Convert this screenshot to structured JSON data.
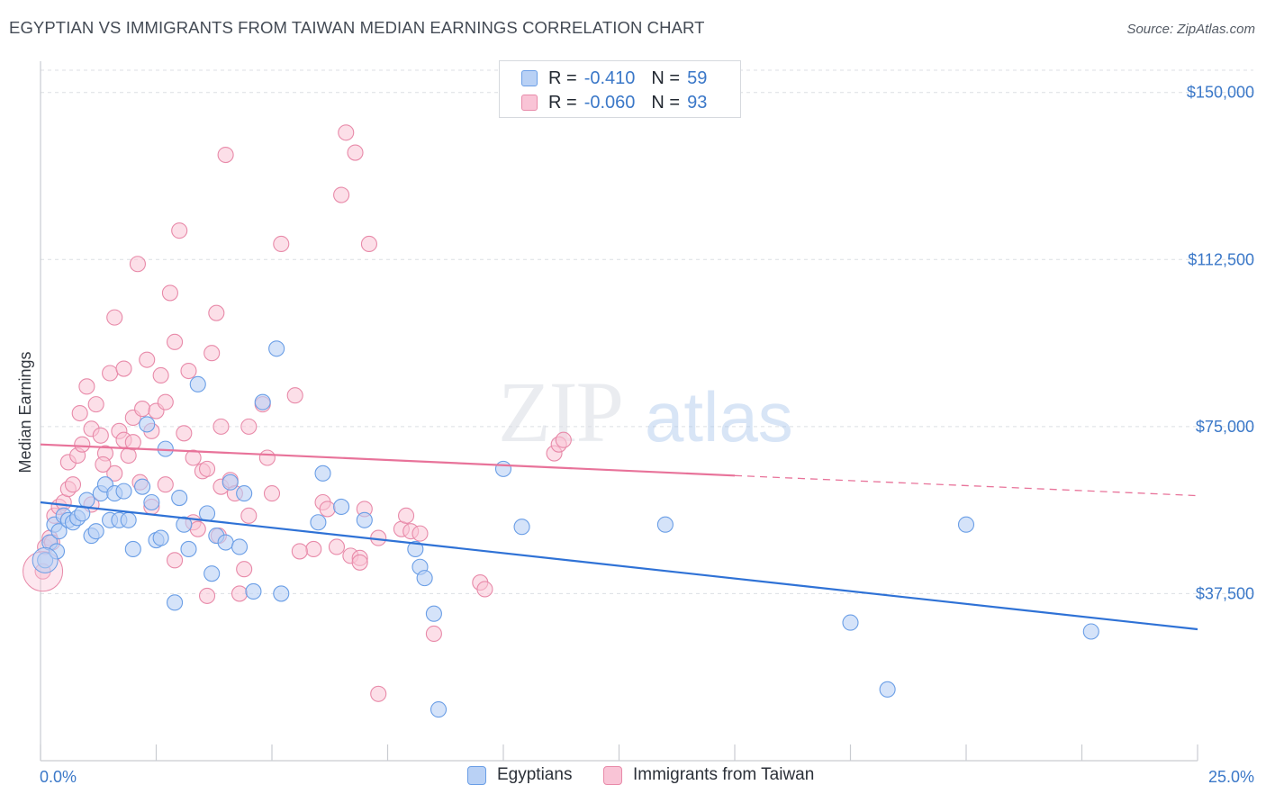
{
  "header": {
    "title": "EGYPTIAN VS IMMIGRANTS FROM TAIWAN MEDIAN EARNINGS CORRELATION CHART",
    "source": "Source: ZipAtlas.com"
  },
  "watermark": {
    "part1": "ZIP",
    "part2": "atlas"
  },
  "legend": {
    "r_label": "R =",
    "n_label": "N =",
    "series": [
      {
        "name": "Egyptians",
        "r": "-0.410",
        "n": "59",
        "fill": "#b9d1f5",
        "stroke": "#6a9ee6"
      },
      {
        "name": "Immigrants from Taiwan",
        "r": "-0.060",
        "n": "93",
        "fill": "#f9c4d6",
        "stroke": "#e88aa9"
      }
    ]
  },
  "chart_data": {
    "type": "scatter",
    "title": "EGYPTIAN VS IMMIGRANTS FROM TAIWAN MEDIAN EARNINGS CORRELATION CHART",
    "xlabel": "",
    "ylabel": "Median Earnings",
    "xlim": [
      0,
      25
    ],
    "ylim": [
      0,
      155000
    ],
    "x_tick_labels": [
      "0.0%",
      "25.0%"
    ],
    "y_ticks": [
      37500,
      75000,
      112500,
      150000
    ],
    "y_tick_labels": [
      "$37,500",
      "$75,000",
      "$112,500",
      "$150,000"
    ],
    "grid": true,
    "colors": {
      "egyptians_line": "#2f72d6",
      "taiwan_line": "#e8739a"
    },
    "series": [
      {
        "name": "Egyptians",
        "trend": {
          "x0": 0,
          "y0": 58000,
          "x1": 25,
          "y1": 29500
        },
        "points": [
          [
            0.1,
            45000
          ],
          [
            0.2,
            49000
          ],
          [
            0.3,
            53000
          ],
          [
            0.4,
            51500
          ],
          [
            0.5,
            55000
          ],
          [
            0.6,
            54000
          ],
          [
            0.7,
            53500
          ],
          [
            0.8,
            54500
          ],
          [
            0.9,
            55500
          ],
          [
            1.0,
            58500
          ],
          [
            1.1,
            50500
          ],
          [
            1.2,
            51500
          ],
          [
            1.3,
            60000
          ],
          [
            1.4,
            62000
          ],
          [
            1.5,
            54000
          ],
          [
            1.6,
            60000
          ],
          [
            1.7,
            54000
          ],
          [
            1.8,
            60500
          ],
          [
            1.9,
            54000
          ],
          [
            2.0,
            47500
          ],
          [
            2.2,
            61500
          ],
          [
            2.3,
            75500
          ],
          [
            2.4,
            58000
          ],
          [
            2.5,
            49500
          ],
          [
            2.6,
            50000
          ],
          [
            2.7,
            70000
          ],
          [
            2.9,
            35500
          ],
          [
            3.0,
            59000
          ],
          [
            3.1,
            53000
          ],
          [
            3.2,
            47500
          ],
          [
            3.4,
            84500
          ],
          [
            3.6,
            55500
          ],
          [
            3.7,
            42000
          ],
          [
            3.8,
            50500
          ],
          [
            4.0,
            49000
          ],
          [
            4.1,
            62500
          ],
          [
            4.3,
            48000
          ],
          [
            4.4,
            60000
          ],
          [
            4.6,
            38000
          ],
          [
            4.8,
            80500
          ],
          [
            5.1,
            92500
          ],
          [
            5.2,
            37500
          ],
          [
            6.0,
            53500
          ],
          [
            6.1,
            64500
          ],
          [
            6.5,
            57000
          ],
          [
            7.0,
            54000
          ],
          [
            8.1,
            47500
          ],
          [
            8.2,
            43500
          ],
          [
            8.3,
            41000
          ],
          [
            8.5,
            33000
          ],
          [
            8.6,
            11500
          ],
          [
            10.0,
            65500
          ],
          [
            10.4,
            52500
          ],
          [
            13.5,
            53000
          ],
          [
            17.5,
            31000
          ],
          [
            18.3,
            16000
          ],
          [
            20.0,
            53000
          ],
          [
            22.7,
            29000
          ],
          [
            0.35,
            47000
          ]
        ]
      },
      {
        "name": "Immigrants from Taiwan",
        "trend": {
          "x0": 0,
          "y0": 71000,
          "x1": 15,
          "y1": 64000,
          "dash_x1": 25,
          "dash_y1": 59500
        },
        "points": [
          [
            0.05,
            42500
          ],
          [
            0.1,
            48000
          ],
          [
            0.2,
            50000
          ],
          [
            0.3,
            55000
          ],
          [
            0.4,
            57000
          ],
          [
            0.5,
            58000
          ],
          [
            0.6,
            61000
          ],
          [
            0.6,
            67000
          ],
          [
            0.7,
            62000
          ],
          [
            0.8,
            68500
          ],
          [
            0.9,
            71000
          ],
          [
            1.0,
            84000
          ],
          [
            1.1,
            57500
          ],
          [
            1.1,
            74500
          ],
          [
            1.2,
            80000
          ],
          [
            1.3,
            73000
          ],
          [
            1.4,
            69000
          ],
          [
            1.5,
            87000
          ],
          [
            1.6,
            64500
          ],
          [
            1.6,
            99500
          ],
          [
            1.7,
            74000
          ],
          [
            1.8,
            72000
          ],
          [
            1.8,
            88000
          ],
          [
            1.9,
            68500
          ],
          [
            2.0,
            77000
          ],
          [
            2.0,
            71500
          ],
          [
            2.1,
            111500
          ],
          [
            2.2,
            79000
          ],
          [
            2.3,
            90000
          ],
          [
            2.4,
            57000
          ],
          [
            2.4,
            74000
          ],
          [
            2.5,
            78500
          ],
          [
            2.6,
            86500
          ],
          [
            2.7,
            62000
          ],
          [
            2.7,
            80500
          ],
          [
            2.8,
            105000
          ],
          [
            2.9,
            94000
          ],
          [
            2.9,
            45000
          ],
          [
            3.0,
            119000
          ],
          [
            3.1,
            73500
          ],
          [
            3.2,
            87500
          ],
          [
            3.3,
            68000
          ],
          [
            3.3,
            53500
          ],
          [
            3.4,
            52000
          ],
          [
            3.5,
            65000
          ],
          [
            3.6,
            65500
          ],
          [
            3.6,
            37000
          ],
          [
            3.7,
            91500
          ],
          [
            3.8,
            100500
          ],
          [
            3.9,
            75000
          ],
          [
            3.9,
            61500
          ],
          [
            4.0,
            136000
          ],
          [
            4.1,
            63000
          ],
          [
            4.2,
            60000
          ],
          [
            4.3,
            37500
          ],
          [
            4.4,
            43000
          ],
          [
            4.5,
            55000
          ],
          [
            4.5,
            75000
          ],
          [
            4.8,
            80000
          ],
          [
            4.9,
            68000
          ],
          [
            5.0,
            60000
          ],
          [
            5.2,
            116000
          ],
          [
            5.5,
            82000
          ],
          [
            5.9,
            47500
          ],
          [
            6.1,
            58000
          ],
          [
            6.2,
            56500
          ],
          [
            6.4,
            48000
          ],
          [
            6.5,
            127000
          ],
          [
            6.6,
            141000
          ],
          [
            6.7,
            46000
          ],
          [
            6.8,
            136500
          ],
          [
            6.9,
            45500
          ],
          [
            7.1,
            116000
          ],
          [
            7.0,
            56500
          ],
          [
            7.3,
            50000
          ],
          [
            7.3,
            15000
          ],
          [
            7.8,
            52000
          ],
          [
            8.0,
            51500
          ],
          [
            8.2,
            51000
          ],
          [
            9.5,
            40000
          ],
          [
            9.6,
            38500
          ],
          [
            11.1,
            69000
          ],
          [
            11.2,
            71000
          ],
          [
            11.3,
            72000
          ],
          [
            8.5,
            28500
          ],
          [
            7.9,
            55000
          ],
          [
            0.25,
            49000
          ],
          [
            1.35,
            66500
          ],
          [
            0.85,
            78000
          ],
          [
            2.15,
            62500
          ],
          [
            5.6,
            47000
          ],
          [
            6.9,
            44500
          ],
          [
            3.85,
            50500
          ]
        ]
      }
    ]
  }
}
